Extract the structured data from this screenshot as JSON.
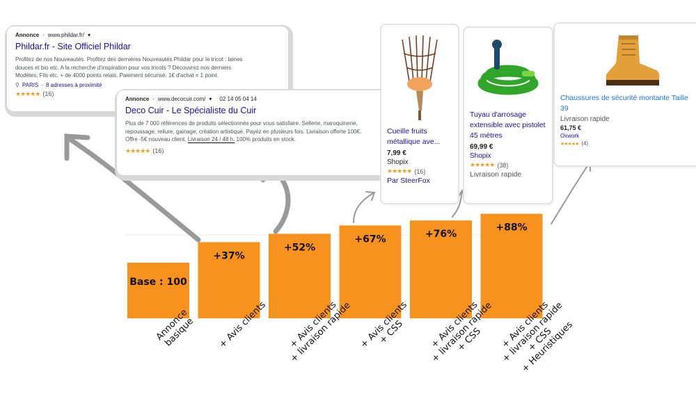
{
  "ads": [
    {
      "label": "Annonce",
      "url": "www.phildar.fr/",
      "title": "Phildar.fr - Site Officiel Phildar",
      "desc_lines": [
        "Profitez de nos Nouveautés. Profitez des dernières Nouveautés Phildar pour le tricot : laines",
        "douces et bio etc. A la recherche d'inspiration pour vos tricots ? Découvrez nos derniers",
        "Modèles, Fils etc. + de 4000 points relais. Paiement sécurisé. 1€ d'achat = 1 point."
      ],
      "location": "PARIS",
      "location_extra": "8 adresses à proximité",
      "stars": "★★★★★",
      "review_count": "(16)"
    },
    {
      "label": "Annonce",
      "url": "www.decocuir.com/",
      "phone": "02 14 05 04 14",
      "title": "Deco Cuir - Le Spécialiste du Cuir",
      "desc_lines": [
        "Plus de 7 000 références de produits sélectionnés pour vous satisfaire. Sellerie, maroquinerie,",
        "repoussage, reliure, gainage, création artistique. Payez en plusieurs fois. Livraison offerte 100€.",
        "Offre -5€ nouveau client."
      ],
      "delivery_text": "Livraison 24 / 48 h.",
      "desc_tail": "100% produits en stock.",
      "stars": "★★★★★",
      "review_count": "(16)"
    }
  ],
  "products": [
    {
      "title": "Cueille fruits métallique ave...",
      "price": "7,99 €",
      "shop": "Shopix",
      "stars": "★★★★★",
      "review_count": "(16)",
      "seller": "Par SteerFox"
    },
    {
      "title": "Tuyau d'arrosage extensible avec pistolet 45 mètres",
      "price": "69,99 €",
      "shop": "Shopix",
      "stars": "★★★★★",
      "review_count": "(38)",
      "delivery": "Livraison rapide"
    },
    {
      "title": "Chaussures de sécurité montante Taille 39",
      "delivery": "Livraison rapide",
      "price": "61,75 €",
      "shop": "Oxwork",
      "stars": "★★★★★",
      "review_count": "(4)"
    }
  ],
  "colors": {
    "bar": "#f7921e",
    "arrow": "#9a9a9a",
    "ad_title": "#1a0dab",
    "star": "#e7a21b"
  },
  "chart_data": {
    "type": "bar",
    "categories": [
      [
        "Annonce",
        "basique"
      ],
      [
        "+ Avis clients"
      ],
      [
        "+ Avis clients",
        "+ livraison rapide"
      ],
      [
        "+ Avis clients",
        "+ CSS"
      ],
      [
        "+ Avis clients",
        "+ livraison rapide",
        "+ CSS"
      ],
      [
        "+ Avis clients",
        "+ livraison rapide",
        "+ CSS",
        "+ Heuristiques"
      ]
    ],
    "values": [
      100,
      137,
      152,
      167,
      176,
      188
    ],
    "data_labels": [
      "Base : 100",
      "+37%",
      "+52%",
      "+67%",
      "+76%",
      "+88%"
    ],
    "ylim": [
      0,
      200
    ],
    "grid": false,
    "legend": "none"
  }
}
